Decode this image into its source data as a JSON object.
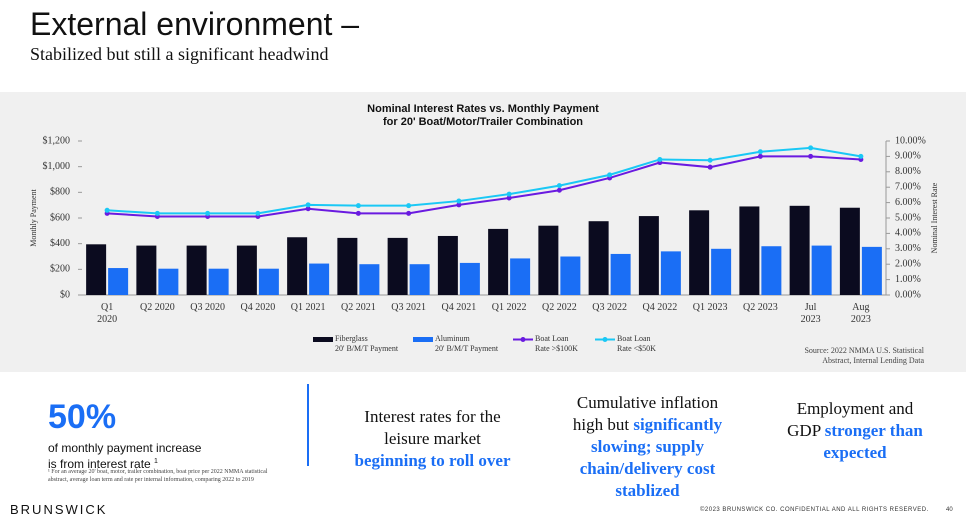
{
  "header": {
    "title": "External environment –",
    "subtitle": "Stabilized but still a significant headwind"
  },
  "chart_data": {
    "type": "bar-line",
    "title": "Nominal Interest Rates vs. Monthly Payment\nfor 20' Boat/Motor/Trailer Combination",
    "ylabel": "Monthly Payment",
    "y2label": "Nominal Interest Rate",
    "categories": [
      "Q1\n2020",
      "Q2 2020",
      "Q3 2020",
      "Q4 2020",
      "Q1 2021",
      "Q2 2021",
      "Q3 2021",
      "Q4 2021",
      "Q1 2022",
      "Q2 2022",
      "Q3 2022",
      "Q4 2022",
      "Q1 2023",
      "Q2 2023",
      "Jul\n2023",
      "Aug\n2023"
    ],
    "series": [
      {
        "name": "Fiberglass\n20' B/M/T Payment",
        "kind": "bar",
        "color": "#0b0b1f",
        "values": [
          395,
          385,
          385,
          385,
          450,
          445,
          445,
          460,
          515,
          540,
          575,
          615,
          660,
          690,
          695,
          680
        ]
      },
      {
        "name": "Aluminum\n20' B/M/T Payment",
        "kind": "bar",
        "color": "#1a6ef5",
        "values": [
          210,
          205,
          205,
          205,
          245,
          240,
          240,
          250,
          285,
          300,
          320,
          340,
          360,
          380,
          385,
          375
        ]
      },
      {
        "name": "Boat Loan\nRate >$100K",
        "kind": "line",
        "axis": "y2",
        "color": "#6a1ae0",
        "values": [
          5.3,
          5.1,
          5.1,
          5.1,
          5.6,
          5.3,
          5.3,
          5.85,
          6.3,
          6.8,
          7.6,
          8.6,
          8.3,
          9.0,
          9.0,
          8.8
        ]
      },
      {
        "name": "Boat Loan\nRate <$50K",
        "kind": "line",
        "axis": "y2",
        "color": "#1ac8f5",
        "values": [
          5.5,
          5.3,
          5.3,
          5.3,
          5.85,
          5.8,
          5.8,
          6.1,
          6.55,
          7.1,
          7.8,
          8.8,
          8.75,
          9.3,
          9.55,
          9.0
        ]
      }
    ],
    "ylim": [
      0,
      1200
    ],
    "yticks": [
      {
        "value": 0,
        "label": "$0"
      },
      {
        "value": 200,
        "label": "$200"
      },
      {
        "value": 400,
        "label": "$400"
      },
      {
        "value": 600,
        "label": "$600"
      },
      {
        "value": 800,
        "label": "$800"
      },
      {
        "value": 1000,
        "label": "$1,000"
      },
      {
        "value": 1200,
        "label": "$1,200"
      }
    ],
    "y2lim": [
      0,
      10
    ],
    "y2ticks": [
      {
        "value": 0,
        "label": "0.00%"
      },
      {
        "value": 1,
        "label": "1.00%"
      },
      {
        "value": 2,
        "label": "2.00%"
      },
      {
        "value": 3,
        "label": "3.00%"
      },
      {
        "value": 4,
        "label": "4.00%"
      },
      {
        "value": 5,
        "label": "5.00%"
      },
      {
        "value": 6,
        "label": "6.00%"
      },
      {
        "value": 7,
        "label": "7.00%"
      },
      {
        "value": 8,
        "label": "8.00%"
      },
      {
        "value": 9,
        "label": "9.00%"
      },
      {
        "value": 10,
        "label": "10.00%"
      }
    ],
    "source": "Source: 2022 NMMA U.S. Statistical\nAbstract, Internal Lending Data"
  },
  "stat": {
    "value": "50%",
    "text": "of monthly payment increase\nis from interest rate",
    "mark": "1",
    "footnote": "¹ For an average 20' boat, motor, trailer combination, boat price per 2022 NMMA statistical abstract, average loan term and rate per internal information, comparing 2022 to 2019"
  },
  "panels": [
    {
      "text": "Interest rates for the leisure market",
      "emphasis": "beginning to roll over"
    },
    {
      "text": "Cumulative inflation high but",
      "emphasis": "significantly slowing; supply chain/delivery cost stablized"
    },
    {
      "text": "Employment and GDP",
      "emphasis": "stronger than expected"
    }
  ],
  "footer": {
    "brand": "BRUNSWICK",
    "copyright": "©2023 BRUNSWICK CO. CONFIDENTIAL AND ALL RIGHTS RESERVED.",
    "page": "40"
  }
}
